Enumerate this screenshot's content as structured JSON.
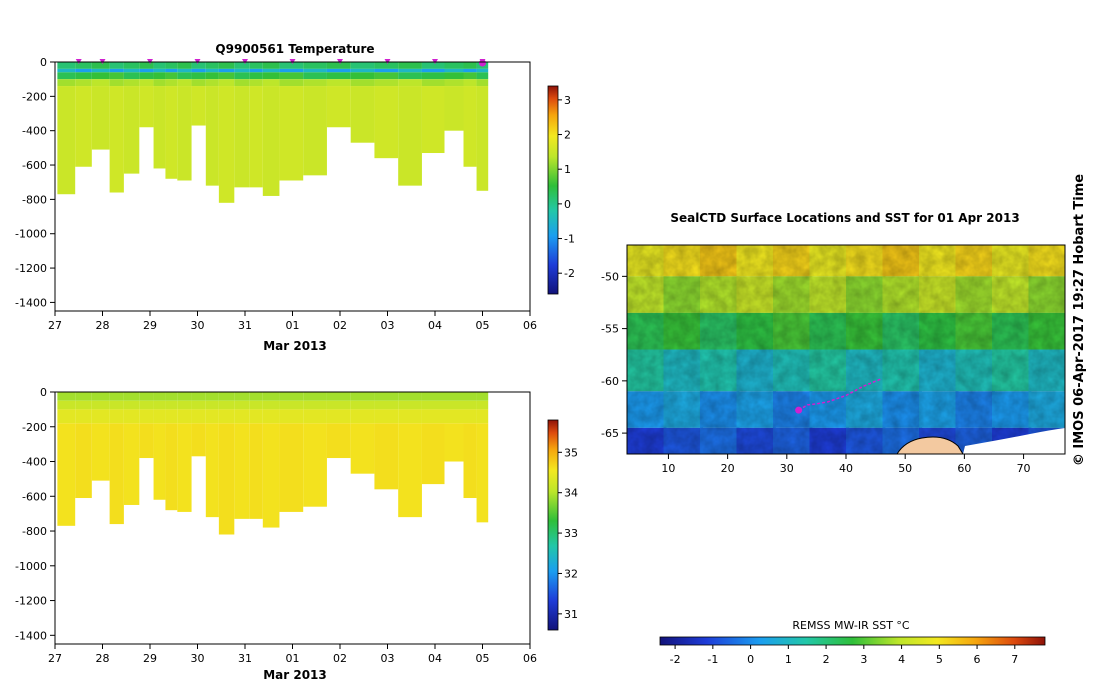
{
  "chart_data": [
    {
      "type": "heatmap",
      "title": "Q9900561  Temperature",
      "xlabel": "Mar 2013",
      "ylabel": "",
      "x_ticks": [
        "27",
        "28",
        "29",
        "30",
        "31",
        "01",
        "02",
        "03",
        "04",
        "05",
        "06"
      ],
      "x_range": [
        0,
        10
      ],
      "y_ticks": [
        "0",
        "-200",
        "-400",
        "-600",
        "-800",
        "-1000",
        "-1200",
        "-1400"
      ],
      "ylim": [
        -1450,
        0
      ],
      "colorbar": {
        "ticks": [
          "-2",
          "-1",
          "0",
          "1",
          "2",
          "3"
        ],
        "range": [
          -2.6,
          3.4
        ]
      },
      "profiles": {
        "x": [
          0.3,
          0.55,
          1.0,
          1.3,
          1.6,
          1.95,
          2.2,
          2.45,
          2.7,
          3.05,
          3.3,
          3.6,
          3.95,
          4.25,
          4.5,
          4.95,
          5.5,
          5.95,
          6.5,
          6.95,
          7.5,
          7.95,
          8.45,
          8.75,
          9.0
        ],
        "max_depth": [
          770,
          610,
          510,
          760,
          650,
          380,
          620,
          680,
          690,
          370,
          720,
          820,
          730,
          730,
          780,
          690,
          660,
          380,
          470,
          560,
          720,
          530,
          400,
          610,
          750
        ],
        "surface_temp": 0.8,
        "deep_temp": 1.5
      },
      "surface_markers_x": [
        0.5,
        1.0,
        2.0,
        3.0,
        4.0,
        5.0,
        6.0,
        7.0,
        8.0,
        9.0
      ]
    },
    {
      "type": "heatmap",
      "title": "",
      "xlabel": "Mar 2013",
      "x_ticks": [
        "27",
        "28",
        "29",
        "30",
        "31",
        "01",
        "02",
        "03",
        "04",
        "05",
        "06"
      ],
      "y_ticks": [
        "0",
        "-200",
        "-400",
        "-600",
        "-800",
        "-1000",
        "-1200",
        "-1400"
      ],
      "ylim": [
        -1450,
        0
      ],
      "colorbar": {
        "ticks": [
          "31",
          "32",
          "33",
          "34",
          "35"
        ],
        "range": [
          30.6,
          35.8
        ]
      },
      "surface_value": 33.9,
      "deep_value": 34.6
    },
    {
      "type": "heatmap",
      "title": "SealCTD Surface Locations and SST for 01 Apr 2013",
      "x_ticks": [
        "10",
        "20",
        "30",
        "40",
        "50",
        "60",
        "70"
      ],
      "xlim": [
        3,
        77
      ],
      "y_ticks": [
        "-50",
        "-55",
        "-60",
        "-65"
      ],
      "ylim": [
        -67,
        -47
      ],
      "colorbar": {
        "label": "REMSS MW-IR SST °C",
        "ticks": [
          "-2",
          "-1",
          "0",
          "1",
          "2",
          "3",
          "4",
          "5",
          "6",
          "7"
        ],
        "range": [
          -2.4,
          7.8
        ]
      },
      "track": [
        [
          32,
          -62.8
        ],
        [
          33.5,
          -62.3
        ],
        [
          35,
          -62.2
        ],
        [
          37,
          -62.0
        ],
        [
          40,
          -61.4
        ],
        [
          43,
          -60.5
        ],
        [
          46,
          -59.8
        ]
      ],
      "track_end": [
        32,
        -62.8
      ],
      "sst_bands": [
        {
          "lat": -48,
          "value": 5.5
        },
        {
          "lat": -52,
          "value": 4.2
        },
        {
          "lat": -55,
          "value": 2.8
        },
        {
          "lat": -59,
          "value": 1.4
        },
        {
          "lat": -63,
          "value": 0.4
        },
        {
          "lat": -66,
          "value": -0.6
        }
      ]
    }
  ],
  "credit": "© IMOS 06-Apr-2017 19:27 Hobart Time"
}
